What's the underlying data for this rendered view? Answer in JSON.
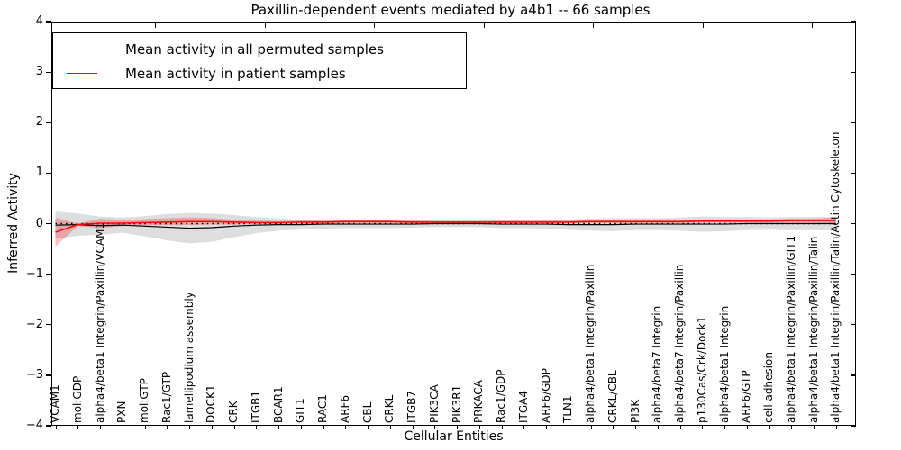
{
  "chart_data": {
    "type": "line",
    "title": "Paxillin-dependent events mediated by a4b1 -- 66 samples",
    "xlabel": "Cellular Entities",
    "ylabel": "Inferred Activity",
    "ylim": [
      -4,
      4
    ],
    "ytick_values": [
      4,
      3,
      2,
      1,
      0,
      -1,
      -2,
      -3,
      -4
    ],
    "ytick_labels": [
      "4",
      "3",
      "2",
      "1",
      "0",
      "−1",
      "−2",
      "−3",
      "−4"
    ],
    "grid": false,
    "legend": {
      "position": "upper left",
      "entries": [
        {
          "label": "Mean activity in all permuted samples",
          "color": "#000000"
        },
        {
          "label": "Mean activity in patient samples",
          "color": "#ff0000"
        }
      ]
    },
    "zero_line": {
      "value": 0,
      "style": "dotted",
      "color": "#000000"
    },
    "categories": [
      "VCAM1",
      "mol:GDP",
      "alpha4/beta1 Integrin/Paxillin/VCAM1",
      "PXN",
      "mol:GTP",
      "Rac1/GTP",
      "lamellipodium assembly",
      "DOCK1",
      "CRK",
      "ITGB1",
      "BCAR1",
      "GIT1",
      "RAC1",
      "ARF6",
      "CBL",
      "CRKL",
      "ITGB7",
      "PIK3CA",
      "PIK3R1",
      "PRKACA",
      "Rac1/GDP",
      "ITGA4",
      "ARF6/GDP",
      "TLN1",
      "alpha4/beta1 Integrin/Paxillin",
      "CRKL/CBL",
      "PI3K",
      "alpha4/beta7 Integrin",
      "alpha4/beta7 Integrin/Paxillin",
      "p130Cas/Crk/Dock1",
      "alpha4/beta1 Integrin",
      "ARF6/GTP",
      "cell adhesion",
      "alpha4/beta1 Integrin/Paxillin/GIT1",
      "alpha4/beta1 Integrin/Paxillin/Talin",
      "alpha4/beta1 Integrin/Paxillin/Talin/Actin Cytoskeleton"
    ],
    "series": [
      {
        "name": "Mean activity in all permuted samples",
        "color": "#000000",
        "band_color": "rgba(0,0,0,0.13)",
        "values": [
          -0.03,
          -0.02,
          -0.04,
          -0.03,
          -0.05,
          -0.07,
          -0.09,
          -0.08,
          -0.05,
          -0.03,
          -0.02,
          -0.02,
          -0.01,
          -0.01,
          -0.01,
          -0.01,
          -0.01,
          0,
          0,
          0,
          -0.01,
          -0.01,
          -0.01,
          -0.02,
          -0.02,
          -0.02,
          -0.01,
          -0.01,
          -0.01,
          -0.01,
          -0.01,
          0,
          0,
          0,
          0,
          0
        ],
        "band_upper": [
          0.24,
          0.2,
          0.14,
          0.12,
          0.15,
          0.19,
          0.21,
          0.2,
          0.17,
          0.13,
          0.1,
          0.08,
          0.08,
          0.07,
          0.07,
          0.07,
          0.06,
          0.07,
          0.07,
          0.07,
          0.07,
          0.07,
          0.08,
          0.08,
          0.1,
          0.11,
          0.11,
          0.11,
          0.12,
          0.14,
          0.13,
          0.13,
          0.12,
          0.13,
          0.13,
          0.14
        ],
        "band_lower": [
          -0.3,
          -0.24,
          -0.22,
          -0.18,
          -0.25,
          -0.33,
          -0.39,
          -0.36,
          -0.27,
          -0.19,
          -0.14,
          -0.12,
          -0.1,
          -0.09,
          -0.09,
          -0.09,
          -0.08,
          -0.07,
          -0.07,
          -0.07,
          -0.09,
          -0.09,
          -0.1,
          -0.12,
          -0.14,
          -0.15,
          -0.13,
          -0.13,
          -0.14,
          -0.16,
          -0.15,
          -0.13,
          -0.12,
          -0.13,
          -0.13,
          -0.14
        ]
      },
      {
        "name": "Mean activity in patient samples",
        "color": "#ff0000",
        "band_color": "rgba(255,0,0,0.25)",
        "values": [
          -0.17,
          -0.02,
          0.01,
          0.01,
          0.02,
          0.03,
          0.04,
          0.04,
          0.03,
          0.02,
          0.02,
          0.03,
          0.03,
          0.04,
          0.04,
          0.04,
          0.03,
          0.03,
          0.03,
          0.03,
          0.03,
          0.03,
          0.03,
          0.03,
          0.04,
          0.04,
          0.04,
          0.04,
          0.04,
          0.05,
          0.05,
          0.05,
          0.05,
          0.06,
          0.06,
          0.06
        ],
        "band_upper": [
          0.12,
          0.0,
          0.1,
          0.07,
          0.09,
          0.11,
          0.12,
          0.11,
          0.08,
          0.06,
          0.05,
          0.06,
          0.06,
          0.07,
          0.07,
          0.06,
          0.06,
          0.05,
          0.05,
          0.05,
          0.06,
          0.06,
          0.06,
          0.06,
          0.07,
          0.07,
          0.07,
          0.07,
          0.07,
          0.08,
          0.08,
          0.08,
          0.08,
          0.1,
          0.1,
          0.12
        ],
        "band_lower": [
          -0.45,
          -0.05,
          -0.09,
          -0.05,
          -0.04,
          -0.03,
          -0.03,
          -0.02,
          -0.02,
          -0.01,
          -0.01,
          0.0,
          0.0,
          0.01,
          0.01,
          0.01,
          0.01,
          0.01,
          0.01,
          0.01,
          0.01,
          0.01,
          0.01,
          0.01,
          0.01,
          0.01,
          0.01,
          0.01,
          0.01,
          0.02,
          0.02,
          0.02,
          0.02,
          0.02,
          0.02,
          0.01
        ]
      }
    ]
  }
}
